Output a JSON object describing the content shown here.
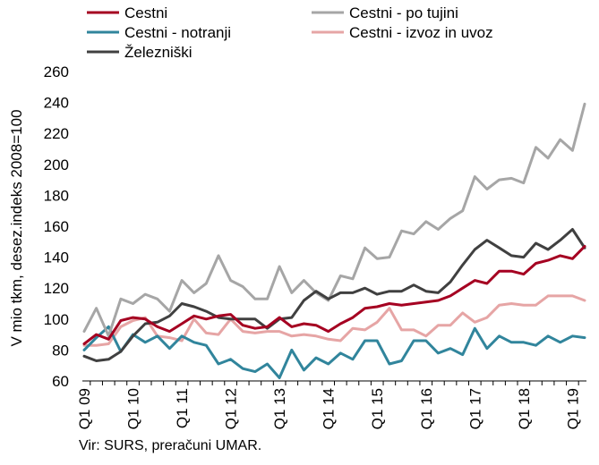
{
  "chart_data": {
    "type": "line",
    "ylabel": "V mio tkm, desez.indeks 2008=100",
    "ylim": [
      60,
      260
    ],
    "yticks": [
      60,
      80,
      100,
      120,
      140,
      160,
      180,
      200,
      220,
      240,
      260
    ],
    "x_tick_labels": [
      "Q1 09",
      "Q1 10",
      "Q1 11",
      "Q1 12",
      "Q1 13",
      "Q1 14",
      "Q1 15",
      "Q1 16",
      "Q1 17",
      "Q1 18",
      "Q1 19"
    ],
    "x": [
      "Q1 09",
      "Q2 09",
      "Q3 09",
      "Q4 09",
      "Q1 10",
      "Q2 10",
      "Q3 10",
      "Q4 10",
      "Q1 11",
      "Q2 11",
      "Q3 11",
      "Q4 11",
      "Q1 12",
      "Q2 12",
      "Q3 12",
      "Q4 12",
      "Q1 13",
      "Q2 13",
      "Q3 13",
      "Q4 13",
      "Q1 14",
      "Q2 14",
      "Q3 14",
      "Q4 14",
      "Q1 15",
      "Q2 15",
      "Q3 15",
      "Q4 15",
      "Q1 16",
      "Q2 16",
      "Q3 16",
      "Q4 16",
      "Q1 17",
      "Q2 17",
      "Q3 17",
      "Q4 17",
      "Q1 18",
      "Q2 18",
      "Q3 18",
      "Q4 18",
      "Q1 19",
      "Q2 19"
    ],
    "legend_position": "top",
    "grid": false,
    "series": [
      {
        "name": "Cestni",
        "color": "#a50021",
        "values": [
          84,
          90,
          87,
          99,
          101,
          100,
          95,
          92,
          97,
          102,
          100,
          102,
          103,
          96,
          94,
          95,
          101,
          95,
          97,
          96,
          92,
          97,
          101,
          107,
          108,
          110,
          109,
          110,
          111,
          112,
          115,
          120,
          125,
          123,
          131,
          131,
          129,
          136,
          138,
          141,
          139,
          147
        ]
      },
      {
        "name": "Cestni - po tujini",
        "color": "#a6a6a6",
        "values": [
          92,
          107,
          89,
          113,
          110,
          116,
          113,
          105,
          125,
          117,
          123,
          141,
          125,
          121,
          113,
          113,
          134,
          117,
          125,
          117,
          112,
          128,
          126,
          146,
          139,
          140,
          157,
          155,
          163,
          158,
          165,
          170,
          192,
          184,
          190,
          191,
          188,
          211,
          204,
          216,
          209,
          239
        ]
      },
      {
        "name": "Cestni - notranji",
        "color": "#31859c",
        "values": [
          80,
          88,
          95,
          79,
          90,
          85,
          89,
          81,
          89,
          85,
          83,
          71,
          74,
          68,
          66,
          71,
          62,
          80,
          67,
          75,
          71,
          78,
          74,
          86,
          86,
          71,
          73,
          86,
          86,
          78,
          81,
          77,
          94,
          81,
          89,
          85,
          85,
          83,
          89,
          85,
          89,
          88
        ]
      },
      {
        "name": "Cestni - izvoz in uvoz",
        "color": "#e6a5a5",
        "values": [
          83,
          83,
          84,
          95,
          99,
          101,
          89,
          88,
          86,
          100,
          91,
          90,
          100,
          92,
          91,
          92,
          92,
          89,
          90,
          89,
          87,
          86,
          94,
          93,
          98,
          107,
          93,
          93,
          89,
          96,
          96,
          104,
          98,
          101,
          109,
          110,
          109,
          109,
          115,
          115,
          115,
          112
        ]
      },
      {
        "name": "Železniški",
        "color": "#404040",
        "values": [
          76,
          73,
          74,
          79,
          89,
          97,
          98,
          102,
          110,
          108,
          105,
          101,
          100,
          100,
          100,
          94,
          100,
          101,
          112,
          118,
          113,
          117,
          117,
          120,
          116,
          118,
          118,
          122,
          118,
          117,
          124,
          135,
          145,
          151,
          146,
          141,
          140,
          149,
          145,
          151,
          158,
          146
        ]
      }
    ]
  },
  "source_text": "Vir: SURS, preračuni UMAR."
}
